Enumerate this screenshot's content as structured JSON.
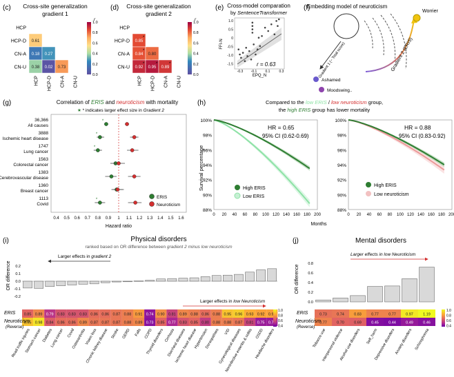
{
  "panel_c": {
    "letter": "(c)",
    "title1": "Cross-site generalization",
    "title2": "gradient 1",
    "labels": [
      "HCP",
      "HCP-D",
      "CN-A",
      "CN-U"
    ],
    "cells": [
      [
        null,
        null,
        null,
        null
      ],
      [
        0.61,
        null,
        null,
        null
      ],
      [
        0.18,
        0.27,
        null,
        null
      ],
      [
        0.38,
        0.02,
        0.73,
        null
      ]
    ],
    "legend_title": "r",
    "legend_ticks": [
      "1.0",
      "0.8",
      "0.6",
      "0.4",
      "0.2",
      "0.0"
    ]
  },
  "panel_d": {
    "letter": "(d)",
    "title1": "Cross-site generalization",
    "title2": "gradient 2",
    "labels": [
      "HCP",
      "HCP-D",
      "CN-A",
      "CN-U"
    ],
    "cells": [
      [
        null,
        null,
        null,
        null
      ],
      [
        0.85,
        null,
        null,
        null
      ],
      [
        0.84,
        0.8,
        null,
        null
      ],
      [
        0.92,
        0.95,
        0.89,
        null
      ]
    ],
    "stars": [
      "1-0",
      "2-0",
      "3-0",
      "3-1",
      "3-2"
    ],
    "legend_title": "r",
    "legend_ticks": [
      "1.0",
      "0.8",
      "0.6",
      "0.4",
      "0.2",
      "0.0"
    ]
  },
  "panel_e": {
    "letter": "(e)",
    "title1": "Cross-model comparation",
    "title2_prefix": "by",
    "title2_model": "SentenceTransformer",
    "xlabel": "EPQ_N",
    "ylabel": "FFI-N",
    "r_label": "r = 0.63",
    "xticks": [
      "-0.3",
      "-0.1",
      "0.1",
      "0.3"
    ],
    "yticks": [
      "1.0",
      "0.5",
      "0",
      "-0.5",
      "-1.0",
      "-1.5"
    ]
  },
  "panel_f": {
    "letter": "(f)",
    "title": "Embedding model of neuroticism",
    "worrier": "Worrier",
    "ashamed": "Ashamed",
    "moodswing": "Moodswing..",
    "gradient1": "Gradient 1 (~ Total score)",
    "gradient2": "Gradient 2 (ERIS)"
  },
  "panel_g": {
    "letter": "(g)",
    "title_pre": "Correlation of ",
    "title_eris": "ERIS",
    "title_mid": " and ",
    "title_neuro": "neuroticism",
    "title_post": " with mortality",
    "note_pre": "* indicates larger effect size in ",
    "note_em": "Gradient 2",
    "xlabel": "Hazard ratio",
    "xticks": [
      "0.4",
      "0.5",
      "0.6",
      "0.7",
      "0.8",
      "0.9",
      "1",
      "1.1",
      "1.2",
      "1.3",
      "1.4",
      "1.5",
      "1.6"
    ],
    "legend": [
      "ERIS",
      "Neuroticism"
    ],
    "rows": [
      {
        "count": "36,366",
        "name": "All causes",
        "eris": 0.88,
        "eris_lo": 0.86,
        "eris_hi": 0.9,
        "neuro": 1.08,
        "neuro_lo": 1.06,
        "neuro_hi": 1.1,
        "star": true
      },
      {
        "count": "3888",
        "name": "Ischemic heart disease",
        "eris": 0.82,
        "eris_lo": 0.79,
        "eris_hi": 0.86,
        "neuro": 1.15,
        "neuro_lo": 1.11,
        "neuro_hi": 1.19,
        "star": true
      },
      {
        "count": "1747",
        "name": "Lung cancer",
        "eris": 0.8,
        "eris_lo": 0.76,
        "eris_hi": 0.84,
        "neuro": 1.13,
        "neuro_lo": 1.08,
        "neuro_hi": 1.19,
        "star": true
      },
      {
        "count": "1563",
        "name": "Colorectal cancer",
        "eris": 0.97,
        "eris_lo": 0.92,
        "eris_hi": 1.02,
        "neuro": 1.0,
        "neuro_lo": 0.95,
        "neuro_hi": 1.06,
        "star": false
      },
      {
        "count": "1383",
        "name": "Cerebrovascular disease",
        "eris": 0.93,
        "eris_lo": 0.87,
        "eris_hi": 0.98,
        "neuro": 1.15,
        "neuro_lo": 1.09,
        "neuro_hi": 1.21,
        "star": false
      },
      {
        "count": "1360",
        "name": "Breast cancer",
        "eris": 0.98,
        "eris_lo": 0.93,
        "eris_hi": 1.04,
        "neuro": 0.99,
        "neuro_lo": 0.94,
        "neuro_hi": 1.05,
        "star": false
      },
      {
        "count": "1113",
        "name": "Covid",
        "eris": 0.82,
        "eris_lo": 0.77,
        "eris_hi": 0.87,
        "neuro": 1.16,
        "neuro_lo": 1.09,
        "neuro_hi": 1.22,
        "star": true
      }
    ]
  },
  "panel_h": {
    "letter": "(h)",
    "title_l1_pre": "Compared to the ",
    "title_l1_eris": "low ERIS",
    "title_l1_slash": " / ",
    "title_l1_neuro": "low neuroticism",
    "title_l1_post": " group,",
    "title_l2_pre": "the ",
    "title_l2_eris": "high ERIS",
    "title_l2_post": " group has lower mortality",
    "ylabel": "Survival percentage",
    "xlabel": "Months",
    "yticks": [
      "100%",
      "98%",
      "96%",
      "94%",
      "92%",
      "90%",
      "88%"
    ],
    "xticks": [
      "0",
      "20",
      "40",
      "60",
      "80",
      "100",
      "120",
      "140",
      "160",
      "180",
      "200"
    ],
    "left": {
      "hr": "HR = 0.65",
      "ci": "95% CI (0.62-0.69)",
      "legend": [
        "High ERIS",
        "Low  ERIS"
      ],
      "high_end": 93.5,
      "low_end": 88.8
    },
    "right": {
      "hr": "HR = 0.88",
      "ci": "95% CI (0.83-0.92)",
      "legend": [
        "High ERIS",
        "Low neuroticism"
      ],
      "high_end": 94.0,
      "low_end": 93.3
    }
  },
  "panel_i": {
    "letter": "(i)",
    "title": "Physical disorders",
    "subtitle_pre": "ranked based on OR difference between ",
    "subtitle_em": "gradient 2 minus low neuroticism",
    "ylabel": "OR difference",
    "yticks": [
      "0.2",
      "0.1",
      "0.0",
      "-0.1",
      "-0.2"
    ],
    "arrow_left_pre": "Larger effects in ",
    "arrow_left_em": "gradient 2",
    "arrow_right_pre": "Larger effects in ",
    "arrow_right_em": "low Neuroticism",
    "row1_label": "ERIS",
    "row2_label": "Neuroticism",
    "row2_sub": "(Reverse)",
    "legend_ticks": [
      "1.0",
      "0.8",
      "0.6",
      "0.4"
    ],
    "categories": [
      "Road traffic injuries",
      "Stomach cancer",
      "Diabetes",
      "Lung cancer",
      "Covid",
      "Osteoarthritis",
      "Vision loss",
      "Chronic kidney disease",
      "Stroke",
      "GERD",
      "Falls",
      "COPD",
      "Thyroid disorders",
      "Cirrhosis",
      "Diarrheal diseases",
      "Ischemic heart disease",
      "Hypertension",
      "Dorsopathies",
      "VID",
      "Gynecological diseases",
      "Noninfective enteritis & colitis",
      "OSDD",
      "Headache disorders"
    ],
    "or_diff": [
      -0.09,
      -0.095,
      -0.07,
      -0.06,
      -0.05,
      -0.04,
      -0.035,
      -0.02,
      -0.01,
      -0.005,
      0.005,
      0.012,
      0.03,
      0.035,
      0.04,
      0.045,
      0.06,
      0.075,
      0.08,
      0.09,
      0.12,
      0.15,
      0.165
    ],
    "eris": [
      "0.85",
      "0.89",
      "0.79",
      "0.83",
      "0.83",
      "0.83",
      "0.86",
      "0.86",
      "0.87",
      "0.88",
      "0.91",
      "0.74",
      "0.90",
      "0.81",
      "0.89",
      "0.88",
      "0.86",
      "0.88",
      "0.95",
      "0.96",
      "0.93",
      "0.92",
      "0.92"
    ],
    "neuro": [
      "0.95",
      "0.98",
      "0.84",
      "0.86",
      "0.86",
      "0.89",
      "0.87",
      "0.87",
      "0.87",
      "0.88",
      "0.89",
      "0.73",
      "0.85",
      "0.77",
      "0.83",
      "0.85",
      "0.80",
      "0.88",
      "0.88",
      "0.87",
      "0.81",
      "0.75",
      "0.75"
    ]
  },
  "panel_j": {
    "letter": "(j)",
    "title": "Mental disorders",
    "ylabel": "OR difference",
    "yticks": [
      "0.8",
      "0.6",
      "0.4",
      "0.2",
      "0.0"
    ],
    "arrow_pre": "Larger effects in low Neuroticism",
    "row1_label": "ERIS",
    "row2_label": "Neuroticism",
    "row2_sub": "(Reverse)",
    "legend_ticks": [
      "1.0",
      "0.8",
      "0.6",
      "0.4"
    ],
    "categories": [
      "Tobacco use",
      "Interpersonal violence",
      "Alcohol use disorders",
      "Self_harm",
      "Depressive disorders",
      "Anxiety disorders",
      "Schizophrenia"
    ],
    "or_diff": [
      0.04,
      0.08,
      0.13,
      0.32,
      0.33,
      0.48,
      0.72
    ],
    "eris": [
      "0.73",
      "0.74",
      "0.83",
      "0.77",
      "0.77",
      "0.97",
      "1.19"
    ],
    "neuro": [
      "0.77",
      "0.70",
      "0.69",
      "0.45",
      "0.44",
      "0.49",
      "0.46"
    ]
  },
  "colors": {
    "eris": "#2e7d32",
    "neuro": "#d32f2f",
    "eris_light": "#8ee2a6",
    "neuro_light": "#f2a6a6"
  }
}
